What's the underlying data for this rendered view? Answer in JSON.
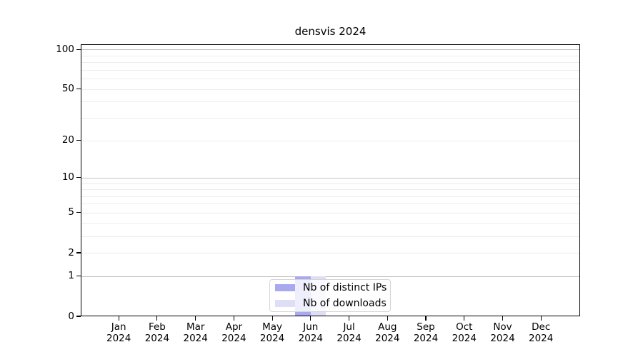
{
  "chart_data": {
    "type": "bar",
    "title": "densvis 2024",
    "categories": [
      {
        "month": "Jan",
        "year": "2024"
      },
      {
        "month": "Feb",
        "year": "2024"
      },
      {
        "month": "Mar",
        "year": "2024"
      },
      {
        "month": "Apr",
        "year": "2024"
      },
      {
        "month": "May",
        "year": "2024"
      },
      {
        "month": "Jun",
        "year": "2024"
      },
      {
        "month": "Jul",
        "year": "2024"
      },
      {
        "month": "Aug",
        "year": "2024"
      },
      {
        "month": "Sep",
        "year": "2024"
      },
      {
        "month": "Oct",
        "year": "2024"
      },
      {
        "month": "Nov",
        "year": "2024"
      },
      {
        "month": "Dec",
        "year": "2024"
      }
    ],
    "series": [
      {
        "name": "Nb of distinct IPs",
        "color": "#a9a9ef",
        "values": [
          0,
          0,
          0,
          0,
          0,
          1,
          0,
          0,
          0,
          0,
          0,
          0
        ]
      },
      {
        "name": "Nb of downloads",
        "color": "#dedef7",
        "values": [
          0,
          0,
          0,
          0,
          0,
          1,
          0,
          0,
          0,
          0,
          0,
          0
        ]
      }
    ],
    "yscale": "log10(1+y)",
    "ylim": [
      0,
      110
    ],
    "ytick_labels": [
      0,
      1,
      2,
      5,
      10,
      20,
      50,
      100
    ],
    "gridlines": {
      "major": [
        1,
        10,
        100
      ],
      "minor": [
        2,
        3,
        4,
        5,
        6,
        7,
        8,
        9,
        20,
        30,
        40,
        50,
        60,
        70,
        80,
        90
      ]
    },
    "grid": true,
    "legend_position": "lower center",
    "colors": {
      "grid_major": "#c0c0c0",
      "grid_minor": "#ececec",
      "axis": "#000000",
      "text": "#000000"
    }
  }
}
